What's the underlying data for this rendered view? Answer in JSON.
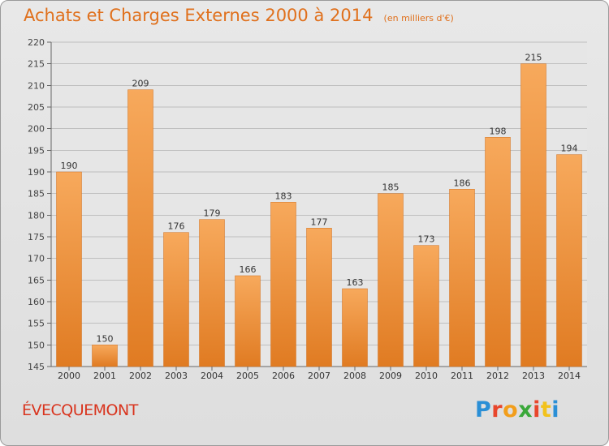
{
  "header": {
    "title": "Achats et Charges Externes 2000 à 2014",
    "subtitle": "(en milliers d'€)"
  },
  "footer": {
    "commune": "ÉVECQUEMONT",
    "logo_letters": [
      "P",
      "r",
      "o",
      "x",
      "i",
      "t",
      "i"
    ],
    "logo_colors": [
      "#2a8fd6",
      "#e8462c",
      "#f29e1b",
      "#3aa83a",
      "#e8462c",
      "#f2c21b",
      "#2a8fd6"
    ]
  },
  "chart_data": {
    "type": "bar",
    "title": "Achats et Charges Externes 2000 à 2014",
    "subtitle": "(en milliers d'€)",
    "categories": [
      "2000",
      "2001",
      "2002",
      "2003",
      "2004",
      "2005",
      "2006",
      "2007",
      "2008",
      "2009",
      "2010",
      "2011",
      "2012",
      "2013",
      "2014"
    ],
    "values": [
      190,
      150,
      209,
      176,
      179,
      166,
      183,
      177,
      163,
      185,
      173,
      186,
      198,
      215,
      194
    ],
    "ylim": [
      145,
      220
    ],
    "yticks": [
      145,
      150,
      155,
      160,
      165,
      170,
      175,
      180,
      185,
      190,
      195,
      200,
      205,
      210,
      215,
      220
    ],
    "grid": true,
    "bar_color_light": "#f7a95c",
    "bar_color_dark": "#e07b22"
  }
}
